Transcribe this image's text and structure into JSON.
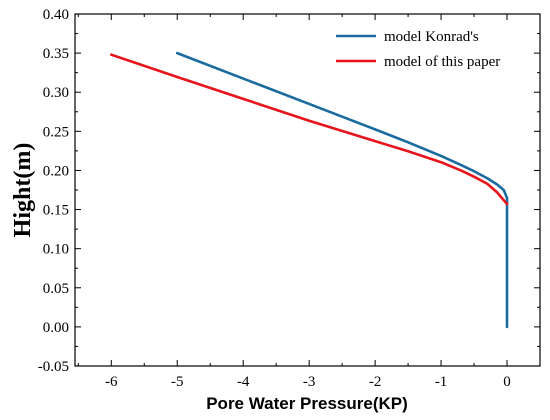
{
  "chart_data": {
    "type": "line",
    "title": "",
    "xlabel": "Pore Water Pressure(KP)",
    "ylabel": "Hight(m)",
    "xlim": [
      -6.55,
      0.5
    ],
    "ylim": [
      -0.05,
      0.4
    ],
    "x_ticks": [
      -6,
      -5,
      -4,
      -3,
      -2,
      -1,
      0
    ],
    "y_ticks": [
      -0.05,
      0.0,
      0.05,
      0.1,
      0.15,
      0.2,
      0.25,
      0.3,
      0.35,
      0.4
    ],
    "x_tick_labels": [
      "-6",
      "-5",
      "-4",
      "-3",
      "-2",
      "-1",
      "0"
    ],
    "y_tick_labels": [
      "-0.05",
      "0.00",
      "0.05",
      "0.10",
      "0.15",
      "0.20",
      "0.25",
      "0.30",
      "0.35",
      "0.40"
    ],
    "grid": false,
    "legend_position": "top-right",
    "series": [
      {
        "name": "model Konrad's",
        "color": "#1a6ba0",
        "points": [
          [
            -5.0,
            0.35
          ],
          [
            -4.0,
            0.3175
          ],
          [
            -3.0,
            0.285
          ],
          [
            -2.0,
            0.2525
          ],
          [
            -1.5,
            0.236
          ],
          [
            -1.0,
            0.2185
          ],
          [
            -0.7,
            0.207
          ],
          [
            -0.5,
            0.199
          ],
          [
            -0.3,
            0.19
          ],
          [
            -0.15,
            0.182
          ],
          [
            -0.05,
            0.175
          ],
          [
            0.0,
            0.165
          ],
          [
            0.0,
            0.12
          ],
          [
            0.0,
            0.05
          ],
          [
            0.0,
            0.0
          ]
        ]
      },
      {
        "name": "model of this paper",
        "color": "#e8141b",
        "points": [
          [
            -6.0,
            0.348
          ],
          [
            -5.0,
            0.3195
          ],
          [
            -4.0,
            0.2915
          ],
          [
            -3.0,
            0.2635
          ],
          [
            -2.0,
            0.2375
          ],
          [
            -1.5,
            0.2245
          ],
          [
            -1.0,
            0.2105
          ],
          [
            -0.7,
            0.2
          ],
          [
            -0.5,
            0.192
          ],
          [
            -0.3,
            0.183
          ],
          [
            -0.15,
            0.172
          ],
          [
            -0.05,
            0.162
          ],
          [
            0.0,
            0.157
          ]
        ]
      }
    ]
  }
}
